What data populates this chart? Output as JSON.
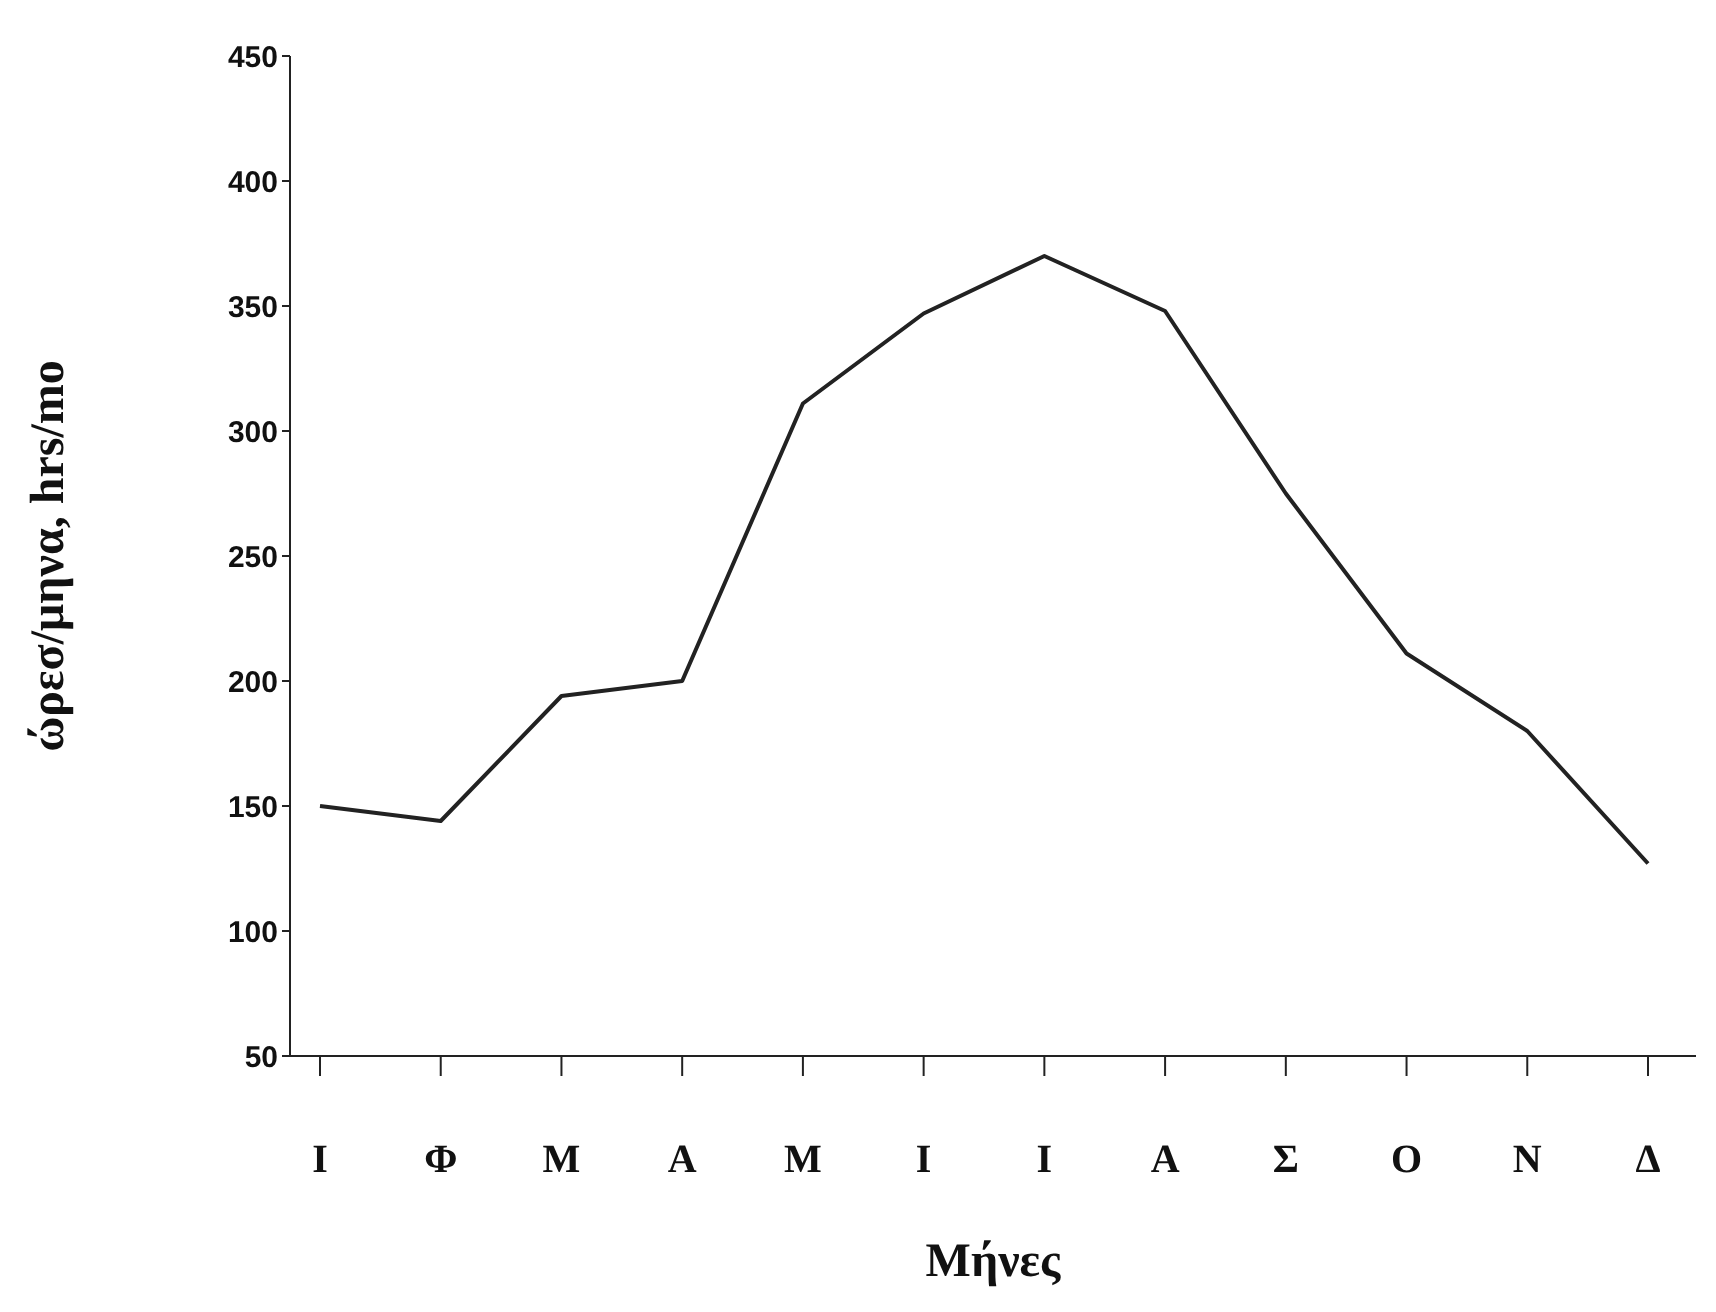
{
  "chart_data": {
    "type": "line",
    "xlabel": "Μήνες",
    "ylabel": "ώρεσ/μηνα, hrs/mo",
    "categories": [
      "Ι",
      "Φ",
      "Μ",
      "Α",
      "Μ",
      "Ι",
      "Ι",
      "Α",
      "Σ",
      "Ο",
      "Ν",
      "Δ"
    ],
    "series": [
      {
        "color": "#222222",
        "values": [
          150,
          144,
          194,
          200,
          311,
          347,
          370,
          348,
          275,
          211,
          180,
          127
        ]
      }
    ],
    "ylim": [
      50,
      450
    ],
    "yticks": [
      50,
      100,
      150,
      200,
      250,
      300,
      350,
      400,
      450
    ],
    "grid": false,
    "legend": false,
    "marker": "none",
    "line_style": "solid"
  }
}
